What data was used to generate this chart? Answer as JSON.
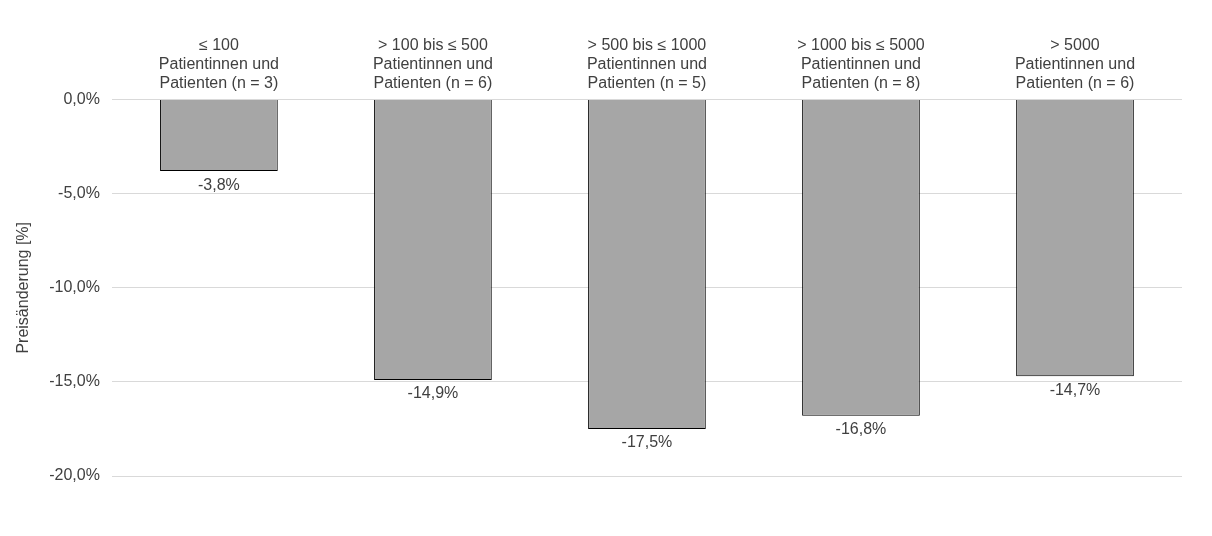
{
  "chart_data": {
    "type": "bar",
    "ylabel": "Preisänderung [%]",
    "categories": [
      "≤ 100\nPatientinnen und\nPatienten (n = 3)",
      "> 100 bis ≤ 500\nPatientinnen und\nPatienten (n = 6)",
      "> 500 bis ≤ 1000\nPatientinnen und\nPatienten (n = 5)",
      "> 1000 bis ≤ 5000\nPatientinnen und\nPatienten (n = 8)",
      "> 5000\nPatientinnen und\nPatienten (n = 6)"
    ],
    "values": [
      -3.8,
      -14.9,
      -17.5,
      -16.8,
      -14.7
    ],
    "value_labels": [
      "-3,8%",
      "-14,9%",
      "-17,5%",
      "-16,8%",
      "-14,7%"
    ],
    "color": "#a6a6a6",
    "ylim": [
      -20,
      0
    ],
    "yticks": [
      {
        "value": 0,
        "label": "0,0%"
      },
      {
        "value": -5,
        "label": "-5,0%"
      },
      {
        "value": -10,
        "label": "-10,0%"
      },
      {
        "value": -15,
        "label": "-15,0%"
      },
      {
        "value": -20,
        "label": "-20,0%"
      }
    ],
    "grid": "y",
    "legend": false
  }
}
